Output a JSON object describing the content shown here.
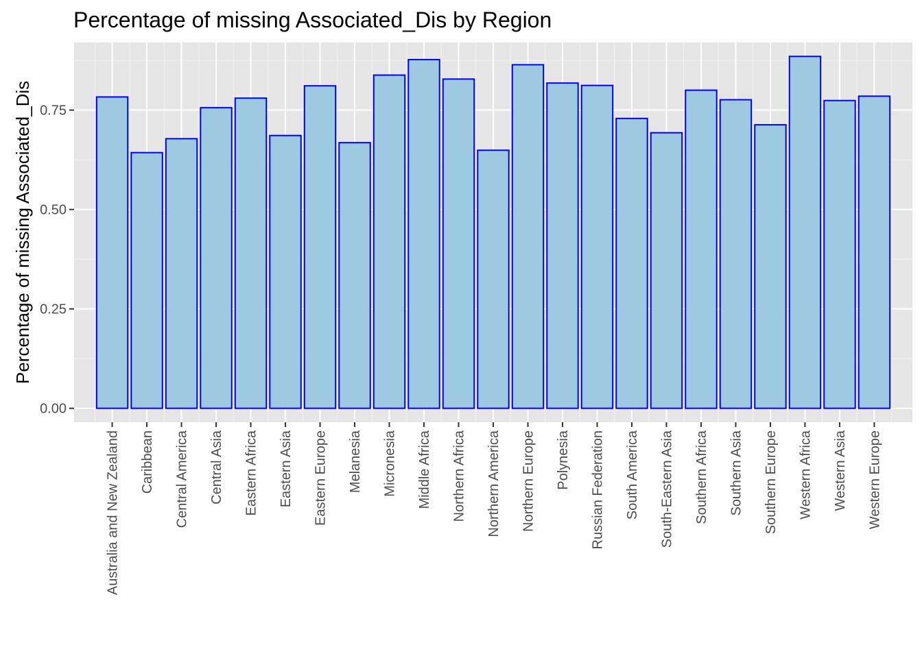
{
  "chart_data": {
    "type": "bar",
    "title": "Percentage of missing Associated_Dis by Region",
    "xlabel": "",
    "ylabel": "Percentage of missing Associated_Dis",
    "ylim": [
      -0.035,
      0.92
    ],
    "yticks": [
      0,
      0.25,
      0.5,
      0.75
    ],
    "ytick_labels": [
      "0.00",
      "0.25",
      "0.50",
      "0.75"
    ],
    "grid": true,
    "legend": "none",
    "categories": [
      "Australia and New Zealand",
      "Caribbean",
      "Central America",
      "Central Asia",
      "Eastern Africa",
      "Eastern Asia",
      "Eastern Europe",
      "Melanesia",
      "Micronesia",
      "Middle Africa",
      "Northern Africa",
      "Northern America",
      "Northern Europe",
      "Polynesia",
      "Russian Federation",
      "South America",
      "South-Eastern Asia",
      "Southern Africa",
      "Southern Asia",
      "Southern Europe",
      "Western Africa",
      "Western Asia",
      "Western Europe"
    ],
    "values": [
      0.783,
      0.643,
      0.678,
      0.756,
      0.78,
      0.686,
      0.811,
      0.668,
      0.838,
      0.877,
      0.828,
      0.649,
      0.864,
      0.818,
      0.812,
      0.729,
      0.693,
      0.8,
      0.776,
      0.713,
      0.885,
      0.774,
      0.785
    ],
    "colors": {
      "bar_fill": "#9ecae1",
      "bar_stroke": "#0000ff",
      "panel_background": "#e6e6e6",
      "grid_major": "#ffffff",
      "grid_minor": "#f2f2f2",
      "tick_color": "#333333"
    }
  }
}
